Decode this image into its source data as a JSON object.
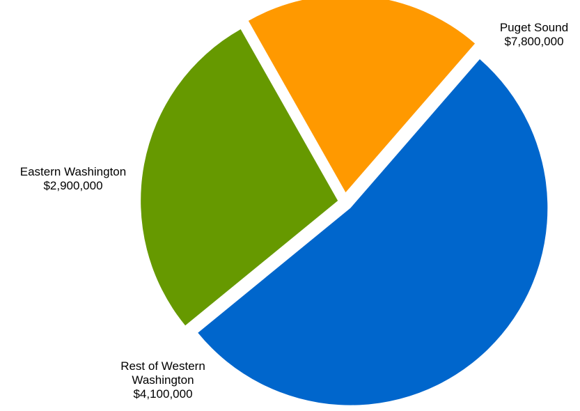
{
  "chart_data": {
    "type": "pie",
    "title": "",
    "start_angle_deg": 41,
    "direction": "clockwise",
    "exploded": true,
    "slices": [
      {
        "label_lines": [
          "Puget Sound"
        ],
        "value": 7800000,
        "value_label": "$7,800,000",
        "color": "#0066CC"
      },
      {
        "label_lines": [
          "Rest of Western",
          "Washington"
        ],
        "value": 4100000,
        "value_label": "$4,100,000",
        "color": "#669900"
      },
      {
        "label_lines": [
          "Eastern Washington"
        ],
        "value": 2900000,
        "value_label": "$2,900,000",
        "color": "#FF9900"
      }
    ]
  }
}
